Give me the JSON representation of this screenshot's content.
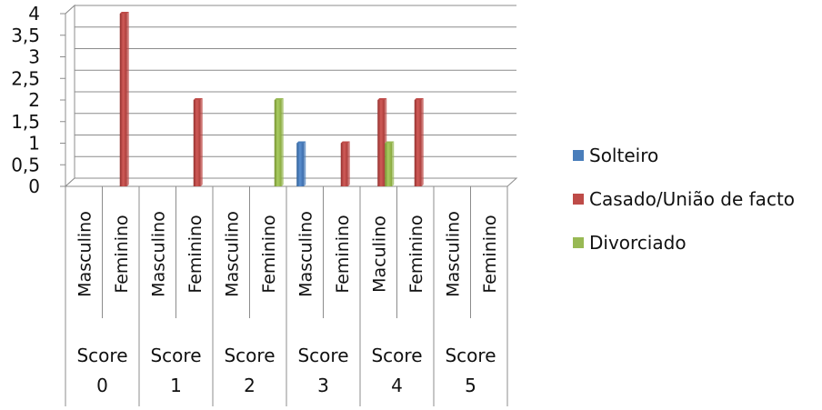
{
  "chart_data": {
    "type": "bar",
    "title": "",
    "xlabel": "",
    "ylabel": "",
    "ylim": [
      0,
      4
    ],
    "y_ticks": [
      "0",
      "0,5",
      "1",
      "1,5",
      "2",
      "2,5",
      "3",
      "3,5",
      "4"
    ],
    "grid": true,
    "legend_position": "right",
    "groups": [
      {
        "label_line1": "Score",
        "label_line2": "0",
        "subcategories": [
          {
            "name": "Masculino",
            "values": [
              0,
              0,
              0
            ]
          },
          {
            "name": "Feminino",
            "values": [
              0,
              4,
              0
            ]
          }
        ]
      },
      {
        "label_line1": "Score",
        "label_line2": "1",
        "subcategories": [
          {
            "name": "Masculino",
            "values": [
              0,
              0,
              0
            ]
          },
          {
            "name": "Feminino",
            "values": [
              0,
              2,
              0
            ]
          }
        ]
      },
      {
        "label_line1": "Score",
        "label_line2": "2",
        "subcategories": [
          {
            "name": "Masculino",
            "values": [
              0,
              0,
              0
            ]
          },
          {
            "name": "Feminino",
            "values": [
              0,
              0,
              2
            ]
          }
        ]
      },
      {
        "label_line1": "Score",
        "label_line2": "3",
        "subcategories": [
          {
            "name": "Masculino",
            "values": [
              1,
              0,
              0
            ]
          },
          {
            "name": "Feminino",
            "values": [
              0,
              1,
              0
            ]
          }
        ]
      },
      {
        "label_line1": "Score",
        "label_line2": "4",
        "subcategories": [
          {
            "name": "Maculino",
            "values": [
              0,
              2,
              1
            ]
          },
          {
            "name": "Feminino",
            "values": [
              0,
              2,
              0
            ]
          }
        ]
      },
      {
        "label_line1": "Score",
        "label_line2": "5",
        "subcategories": [
          {
            "name": "Masculino",
            "values": [
              0,
              0,
              0
            ]
          },
          {
            "name": "Feminino",
            "values": [
              0,
              0,
              0
            ]
          }
        ]
      }
    ],
    "series": [
      {
        "name": "Solteiro",
        "color": "#4a7ebb"
      },
      {
        "name": "Casado/União de facto",
        "color": "#be4b48"
      },
      {
        "name": "Divorciado",
        "color": "#98b954"
      }
    ]
  }
}
